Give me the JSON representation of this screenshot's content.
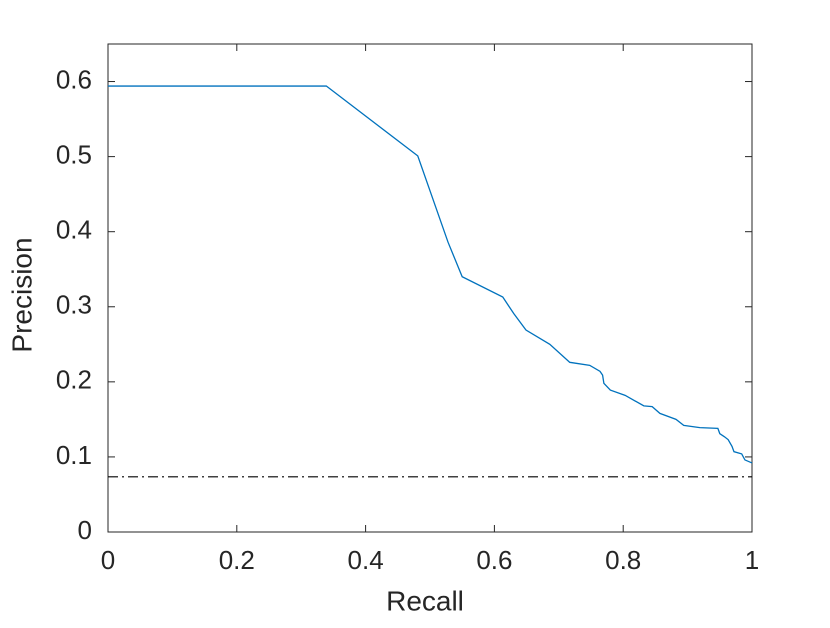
{
  "chart_data": {
    "type": "line",
    "xlabel": "Recall",
    "ylabel": "Precision",
    "xlim": [
      0,
      1
    ],
    "xticks": [
      0,
      0.2,
      0.4,
      0.6,
      0.8,
      1
    ],
    "ylim": [
      0,
      0.65
    ],
    "yticks": [
      0,
      0.1,
      0.2,
      0.3,
      0.4,
      0.5,
      0.6
    ],
    "grid": false,
    "series": [
      {
        "color": "#0072bd",
        "x": [
          0,
          0.339,
          0.481,
          0.528,
          0.55,
          0.613,
          0.63,
          0.649,
          0.686,
          0.717,
          0.748,
          0.764,
          0.768,
          0.77,
          0.78,
          0.803,
          0.832,
          0.845,
          0.857,
          0.882,
          0.894,
          0.919,
          0.947,
          0.95,
          0.957,
          0.963,
          0.969,
          0.972,
          0.984,
          0.989,
          1
        ],
        "values": [
          0.594,
          0.594,
          0.501,
          0.386,
          0.34,
          0.313,
          0.291,
          0.269,
          0.25,
          0.226,
          0.222,
          0.214,
          0.209,
          0.198,
          0.189,
          0.182,
          0.168,
          0.167,
          0.158,
          0.15,
          0.142,
          0.139,
          0.138,
          0.131,
          0.127,
          0.123,
          0.114,
          0.107,
          0.104,
          0.096,
          0.092
        ]
      }
    ],
    "hlines": [
      {
        "value": 0.0735,
        "color": "#000000",
        "style": "dash-dot"
      }
    ]
  }
}
